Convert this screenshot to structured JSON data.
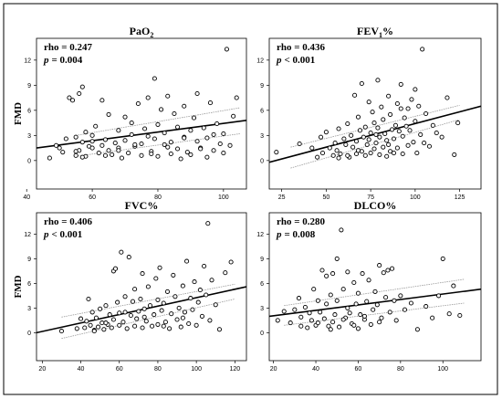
{
  "chart_data": [
    {
      "type": "scatter",
      "title": "PaO",
      "title_sub": "2",
      "ylabel": "FMD",
      "xlabel": "",
      "rho_text": "rho = 0.247",
      "p_label": "p",
      "p_text": "= 0.004",
      "xticks": [
        40,
        60,
        80,
        100
      ],
      "yticks": [
        0,
        3,
        6,
        9,
        12
      ],
      "xlim": [
        43,
        107
      ],
      "ylim": [
        -3.4,
        14.6
      ],
      "fit": {
        "x": [
          43,
          107
        ],
        "y": [
          1.5,
          4.8
        ]
      },
      "ci_upper": {
        "x": [
          55,
          105
        ],
        "y": [
          3.0,
          6.3
        ]
      },
      "ci_lower": {
        "x": [
          55,
          105
        ],
        "y": [
          0.5,
          3.2
        ]
      },
      "x": [
        47,
        49,
        50,
        51,
        52,
        53,
        54,
        55,
        55,
        56,
        56,
        57,
        57,
        58,
        58,
        59,
        60,
        60,
        61,
        62,
        63,
        63,
        64,
        65,
        65,
        66,
        67,
        68,
        68,
        69,
        70,
        70,
        71,
        72,
        72,
        73,
        74,
        75,
        75,
        76,
        77,
        77,
        78,
        79,
        79,
        80,
        80,
        81,
        82,
        82,
        83,
        84,
        84,
        85,
        86,
        86,
        87,
        88,
        88,
        89,
        90,
        90,
        91,
        92,
        92,
        93,
        94,
        95,
        95,
        96,
        97,
        98,
        99,
        100,
        100,
        101,
        102,
        103,
        104,
        55,
        57,
        60,
        64,
        68,
        73,
        78,
        83,
        88,
        93,
        97
      ],
      "y": [
        0.3,
        1.8,
        1.5,
        1.0,
        2.6,
        7.5,
        7.2,
        2.8,
        0.6,
        8.0,
        1.2,
        8.8,
        2.2,
        0.5,
        3.4,
        1.7,
        1.5,
        3.0,
        4.1,
        0.9,
        1.8,
        7.2,
        2.5,
        1.2,
        5.5,
        0.7,
        2.1,
        3.6,
        1.5,
        0.3,
        2.4,
        5.2,
        0.9,
        3.1,
        4.5,
        1.7,
        6.8,
        2.0,
        0.6,
        3.8,
        2.9,
        7.5,
        1.1,
        9.8,
        2.6,
        4.3,
        0.5,
        6.1,
        1.9,
        3.3,
        7.7,
        0.8,
        2.2,
        5.6,
        1.4,
        4.0,
        0.2,
        2.8,
        6.5,
        1.0,
        3.6,
        0.7,
        5.1,
        2.3,
        8.0,
        1.5,
        3.9,
        0.4,
        2.7,
        6.9,
        1.2,
        4.4,
        2.0,
        0.9,
        3.2,
        13.3,
        1.8,
        5.3,
        7.5,
        1.1,
        0.4,
        2.3,
        0.6,
        1.2,
        1.9,
        0.8,
        1.6,
        2.7,
        1.4,
        3.1
      ]
    },
    {
      "type": "scatter",
      "title": "FEV",
      "title_sub": "1",
      "title_post": "%",
      "ylabel": "",
      "xlabel": "",
      "rho_text": "rho = 0.436",
      "p_label": "p",
      "p_text": "< 0.001",
      "xticks": [
        25,
        50,
        75,
        100,
        125
      ],
      "yticks": [
        0,
        3,
        6,
        9,
        12
      ],
      "xlim": [
        18,
        137
      ],
      "ylim": [
        -3.4,
        14.6
      ],
      "fit": {
        "x": [
          18,
          137
        ],
        "y": [
          -0.2,
          6.5
        ]
      },
      "ci_upper": {
        "x": [
          30,
          125
        ],
        "y": [
          1.6,
          6.6
        ]
      },
      "ci_lower": {
        "x": [
          30,
          125
        ],
        "y": [
          -0.9,
          4.9
        ]
      },
      "x": [
        22,
        35,
        42,
        45,
        47,
        48,
        50,
        52,
        54,
        55,
        56,
        57,
        58,
        60,
        61,
        62,
        63,
        64,
        65,
        66,
        67,
        67,
        68,
        69,
        70,
        70,
        71,
        72,
        72,
        73,
        74,
        74,
        75,
        75,
        76,
        77,
        77,
        78,
        79,
        79,
        80,
        80,
        81,
        82,
        82,
        83,
        84,
        84,
        85,
        86,
        86,
        87,
        88,
        88,
        89,
        90,
        90,
        91,
        92,
        93,
        93,
        94,
        95,
        96,
        96,
        97,
        98,
        99,
        100,
        100,
        101,
        102,
        103,
        104,
        105,
        106,
        108,
        110,
        112,
        115,
        118,
        122,
        124,
        57,
        62,
        68,
        78,
        85,
        92
      ],
      "y": [
        1.0,
        2.0,
        1.5,
        0.4,
        2.8,
        0.9,
        3.4,
        1.5,
        0.6,
        2.1,
        1.2,
        3.8,
        0.8,
        2.6,
        1.9,
        4.4,
        0.4,
        3.0,
        1.6,
        7.8,
        2.3,
        0.8,
        5.2,
        3.6,
        1.1,
        9.2,
        2.8,
        0.6,
        4.0,
        1.9,
        7.0,
        2.5,
        3.3,
        0.9,
        5.8,
        1.4,
        4.5,
        2.1,
        9.6,
        3.9,
        0.7,
        2.8,
        6.4,
        1.6,
        4.9,
        3.2,
        0.5,
        2.4,
        7.7,
        1.1,
        5.5,
        3.7,
        0.9,
        2.6,
        4.2,
        6.8,
        1.5,
        3.5,
        9.1,
        0.8,
        2.9,
        5.1,
        4.1,
        1.8,
        6.2,
        3.6,
        7.3,
        2.2,
        4.7,
        8.5,
        0.9,
        6.5,
        3.1,
        13.3,
        2.1,
        5.6,
        1.7,
        4.2,
        3.3,
        2.8,
        7.5,
        0.7,
        4.5,
        0.3,
        0.6,
        1.2,
        3.1,
        1.9,
        6.2
      ]
    },
    {
      "type": "scatter",
      "title": "FVC%",
      "ylabel": "FMD",
      "xlabel": "",
      "rho_text": "rho = 0.406",
      "p_label": "p",
      "p_text": "< 0.001",
      "xticks": [
        20,
        40,
        60,
        80,
        100,
        120
      ],
      "yticks": [
        0,
        3,
        6,
        9,
        12
      ],
      "xlim": [
        17,
        126
      ],
      "ylim": [
        -3.4,
        14.6
      ],
      "fit": {
        "x": [
          17,
          126
        ],
        "y": [
          0.0,
          5.6
        ]
      },
      "ci_upper": {
        "x": [
          30,
          120
        ],
        "y": [
          1.9,
          5.9
        ]
      },
      "ci_lower": {
        "x": [
          30,
          120
        ],
        "y": [
          -0.7,
          4.1
        ]
      },
      "x": [
        30,
        38,
        40,
        42,
        43,
        44,
        45,
        46,
        47,
        48,
        49,
        50,
        51,
        52,
        53,
        54,
        55,
        56,
        57,
        57,
        58,
        59,
        60,
        60,
        61,
        62,
        63,
        64,
        65,
        66,
        67,
        68,
        68,
        69,
        70,
        71,
        72,
        72,
        73,
        74,
        75,
        76,
        77,
        78,
        79,
        80,
        80,
        81,
        82,
        83,
        84,
        85,
        86,
        87,
        88,
        89,
        90,
        91,
        92,
        93,
        94,
        95,
        96,
        97,
        98,
        99,
        100,
        101,
        102,
        103,
        104,
        105,
        106,
        107,
        108,
        110,
        112,
        115,
        118,
        47,
        53,
        63,
        73,
        83,
        93
      ],
      "y": [
        0.2,
        0.5,
        1.7,
        0.6,
        1.4,
        4.1,
        0.9,
        2.5,
        0.3,
        1.8,
        0.7,
        2.9,
        1.2,
        0.4,
        3.3,
        1.0,
        2.2,
        0.6,
        7.5,
        1.6,
        7.8,
        3.7,
        0.9,
        2.4,
        9.8,
        1.3,
        4.4,
        0.5,
        9.2,
        2.1,
        3.8,
        0.8,
        5.3,
        1.7,
        2.6,
        4.1,
        0.6,
        7.2,
        2.9,
        1.4,
        5.6,
        3.3,
        0.8,
        2.2,
        6.6,
        4.0,
        1.0,
        7.9,
        2.7,
        3.6,
        1.3,
        5.0,
        0.5,
        2.3,
        7.0,
        4.4,
        1.6,
        3.0,
        0.7,
        5.7,
        2.5,
        8.7,
        1.1,
        4.2,
        2.8,
        6.2,
        0.9,
        3.7,
        5.2,
        2.0,
        8.1,
        4.6,
        13.3,
        1.5,
        6.4,
        3.4,
        0.4,
        7.3,
        8.6,
        0.2,
        1.2,
        2.5,
        1.9,
        0.8,
        1.8
      ]
    },
    {
      "type": "scatter",
      "title": "DLCO%",
      "ylabel": "",
      "xlabel": "",
      "rho_text": "rho = 0.280",
      "p_label": "p",
      "p_text": "= 0.008",
      "xticks": [
        20,
        40,
        60,
        80,
        100
      ],
      "yticks": [
        0,
        3,
        6,
        9,
        12
      ],
      "xlim": [
        18,
        118
      ],
      "ylim": [
        -3.4,
        14.6
      ],
      "fit": {
        "x": [
          18,
          118
        ],
        "y": [
          2.0,
          5.3
        ]
      },
      "ci_upper": {
        "x": [
          25,
          110
        ],
        "y": [
          3.3,
          6.5
        ]
      },
      "ci_lower": {
        "x": [
          25,
          110
        ],
        "y": [
          0.9,
          3.6
        ]
      },
      "x": [
        22,
        25,
        28,
        30,
        32,
        33,
        35,
        36,
        37,
        38,
        39,
        40,
        41,
        42,
        43,
        44,
        45,
        45,
        46,
        47,
        48,
        48,
        49,
        50,
        50,
        51,
        52,
        53,
        54,
        55,
        55,
        56,
        57,
        58,
        59,
        60,
        60,
        61,
        62,
        63,
        64,
        65,
        66,
        67,
        68,
        69,
        70,
        71,
        72,
        73,
        74,
        75,
        76,
        78,
        80,
        82,
        85,
        88,
        92,
        95,
        98,
        100,
        103,
        105,
        108,
        33,
        41,
        47,
        53,
        58,
        63,
        70,
        77
      ],
      "y": [
        1.5,
        2.6,
        1.2,
        2.8,
        4.2,
        1.9,
        3.1,
        0.6,
        2.4,
        1.5,
        5.3,
        0.9,
        3.9,
        2.5,
        7.6,
        1.7,
        6.9,
        3.5,
        0.8,
        4.6,
        1.3,
        7.2,
        2.2,
        9.0,
        3.9,
        0.7,
        12.5,
        5.3,
        1.8,
        7.4,
        3.0,
        2.4,
        1.1,
        6.1,
        3.5,
        0.5,
        4.8,
        2.2,
        7.2,
        1.6,
        3.8,
        6.4,
        1.0,
        2.8,
        5.0,
        3.4,
        8.2,
        1.8,
        7.3,
        4.3,
        7.6,
        2.5,
        7.8,
        1.5,
        4.5,
        2.8,
        3.6,
        0.4,
        3.2,
        1.8,
        4.5,
        9.0,
        2.3,
        5.7,
        2.1,
        0.8,
        1.2,
        0.4,
        1.6,
        0.9,
        2.0,
        1.3,
        3.9
      ]
    }
  ]
}
